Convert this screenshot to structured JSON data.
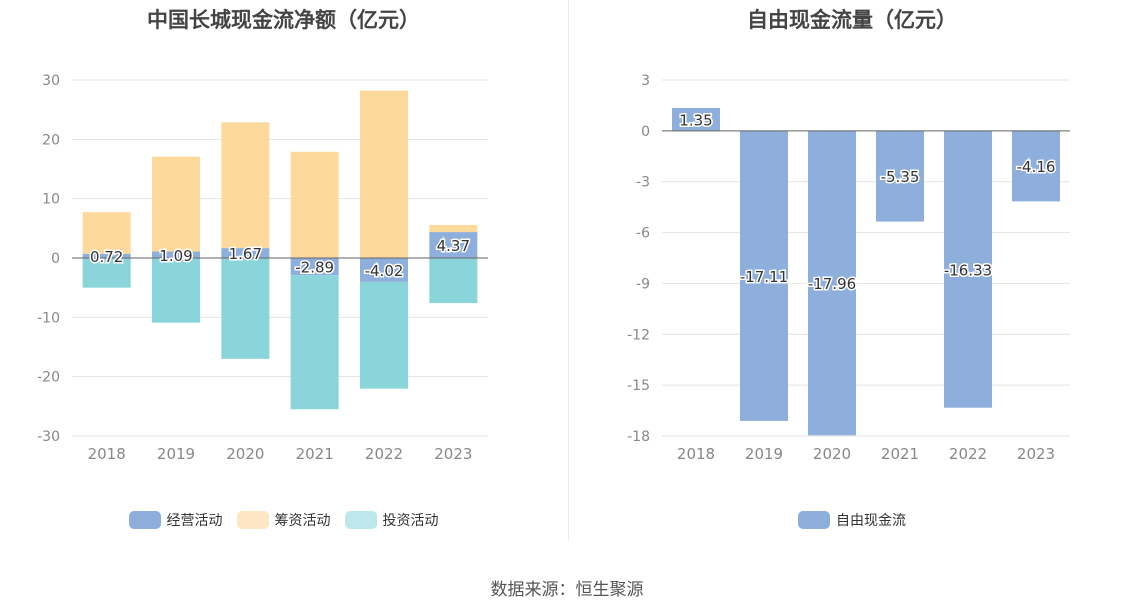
{
  "source_text": "数据来源：恒生聚源",
  "chart_data": [
    {
      "type": "bar",
      "stacked": true,
      "title": "中国长城现金流净额（亿元）",
      "categories": [
        "2018",
        "2019",
        "2020",
        "2021",
        "2022",
        "2023"
      ],
      "ylim": [
        -30,
        30
      ],
      "yticks": [
        30,
        20,
        10,
        0,
        -10,
        -20,
        -30
      ],
      "grid": true,
      "legend_position": "bottom",
      "series": [
        {
          "name": "经营活动",
          "color": "#8eaedb",
          "values": [
            0.72,
            1.09,
            1.67,
            -2.89,
            -4.02,
            4.37
          ],
          "labeled": true
        },
        {
          "name": "筹资活动",
          "color": "#fdd99b",
          "values": [
            7.0,
            16.0,
            21.2,
            17.9,
            28.2,
            1.2
          ],
          "labeled": false
        },
        {
          "name": "投资活动",
          "color": "#89d5da",
          "values": [
            -5.0,
            -10.9,
            -17.0,
            -22.6,
            -18.0,
            -7.6
          ],
          "labeled": false
        }
      ],
      "legend_colors": [
        "#8eaedb",
        "#fde6c3",
        "#bfe8ec"
      ]
    },
    {
      "type": "bar",
      "title": "自由现金流量（亿元）",
      "categories": [
        "2018",
        "2019",
        "2020",
        "2021",
        "2022",
        "2023"
      ],
      "ylim": [
        -18,
        3
      ],
      "yticks": [
        3,
        0,
        -3,
        -6,
        -9,
        -12,
        -15,
        -18
      ],
      "grid": true,
      "legend_position": "bottom",
      "series": [
        {
          "name": "自由现金流",
          "color": "#8eaedb",
          "values": [
            1.35,
            -17.11,
            -17.96,
            -5.35,
            -16.33,
            -4.16
          ],
          "labeled": true
        }
      ],
      "legend_colors": [
        "#8eaedb"
      ]
    }
  ]
}
